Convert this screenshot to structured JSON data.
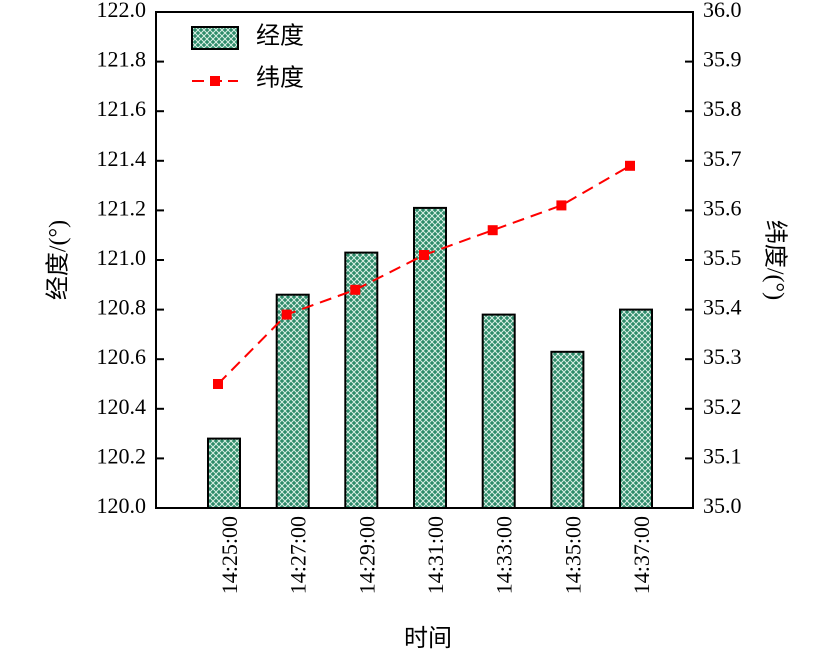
{
  "chart_data": {
    "type": "bar+line",
    "categories": [
      "14:25:00",
      "14:27:00",
      "14:29:00",
      "14:31:00",
      "14:33:00",
      "14:35:00",
      "14:37:00"
    ],
    "series": [
      {
        "name": "经度",
        "kind": "bar",
        "axis": "left",
        "values": [
          120.28,
          120.86,
          121.03,
          121.21,
          120.78,
          120.63,
          120.8
        ],
        "color": "#2e8b6a",
        "pattern": "crosshatch"
      },
      {
        "name": "纬度",
        "kind": "line",
        "axis": "right",
        "values": [
          35.25,
          35.39,
          35.44,
          35.51,
          35.56,
          35.61,
          35.69
        ],
        "color": "#ff0000",
        "marker": "square",
        "line_style": "dashed"
      }
    ],
    "xlabel": "时间",
    "ylabel_left": "经度/(°)",
    "ylabel_right": "纬度/(°)",
    "ylim_left": [
      120.0,
      122.0
    ],
    "ylim_right": [
      35.0,
      36.0
    ],
    "yticks_left": [
      "120.0",
      "120.2",
      "120.4",
      "120.6",
      "120.8",
      "121.0",
      "121.2",
      "121.4",
      "121.6",
      "121.8",
      "122.0"
    ],
    "yticks_right": [
      "35.0",
      "35.1",
      "35.2",
      "35.3",
      "35.4",
      "35.5",
      "35.6",
      "35.7",
      "35.8",
      "35.9",
      "36.0"
    ],
    "legend_position": "top-left",
    "grid": false
  }
}
